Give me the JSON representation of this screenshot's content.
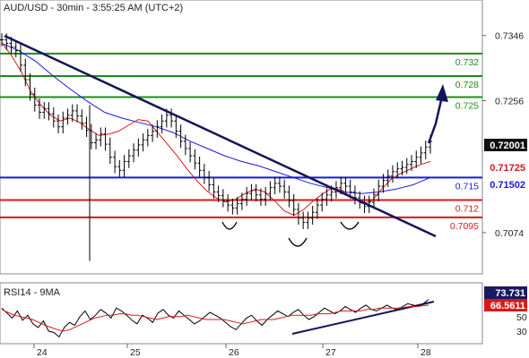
{
  "chart_data": {
    "type": "candlestick",
    "title": "AUD/USD - 30min - 3:55:25 AM (UTC+2)",
    "x_ticks": [
      "24",
      "25",
      "26",
      "27",
      "28"
    ],
    "y_ticks": [
      "0.7346",
      "0.7256",
      "0.7074"
    ],
    "ylim": [
      0.7022,
      0.739
    ],
    "current_price": "0.72001",
    "moving_average_labels": [
      "0.71725",
      "0.71502"
    ],
    "levels": [
      {
        "label": "0.732",
        "value": 0.7321,
        "color": "#1a8c1a"
      },
      {
        "label": "0.728",
        "value": 0.729,
        "color": "#1a8c1a"
      },
      {
        "label": "0.725",
        "value": 0.7261,
        "color": "#1a8c1a"
      },
      {
        "label": "0.715",
        "value": 0.715,
        "color": "#1919d9"
      },
      {
        "label": "0.712",
        "value": 0.7119,
        "color": "#d91919"
      },
      {
        "label": "0.7095",
        "value": 0.7095,
        "color": "#d91919"
      }
    ],
    "series": [
      {
        "name": "price",
        "color": "#000000",
        "values": [
          0.734,
          0.7335,
          0.733,
          0.7325,
          0.7305,
          0.7285,
          0.7265,
          0.725,
          0.724,
          0.7245,
          0.7238,
          0.7228,
          0.722,
          0.7232,
          0.7236,
          0.7242,
          0.7235,
          0.7225,
          0.7215,
          0.7198,
          0.7202,
          0.721,
          0.7196,
          0.7178,
          0.7165,
          0.716,
          0.7172,
          0.718,
          0.7188,
          0.7195,
          0.7202,
          0.7208,
          0.7214,
          0.722,
          0.7228,
          0.7236,
          0.7228,
          0.7214,
          0.72,
          0.719,
          0.718,
          0.717,
          0.716,
          0.715,
          0.714,
          0.713,
          0.7125,
          0.7118,
          0.7112,
          0.7108,
          0.7114,
          0.712,
          0.7128,
          0.7132,
          0.7126,
          0.712,
          0.7128,
          0.7136,
          0.7142,
          0.7138,
          0.713,
          0.7118,
          0.7106,
          0.7094,
          0.7088,
          0.7094,
          0.7102,
          0.7112,
          0.712,
          0.7126,
          0.713,
          0.7136,
          0.7142,
          0.7138,
          0.713,
          0.7122,
          0.7116,
          0.711,
          0.7116,
          0.7126,
          0.7138,
          0.7146,
          0.7152,
          0.7158,
          0.7162,
          0.7164,
          0.7168,
          0.7172,
          0.7178,
          0.7184,
          0.7192,
          0.72
        ]
      },
      {
        "name": "ma_slow",
        "color": "#1919d9",
        "values": [
          0.7335,
          0.7325,
          0.731,
          0.729,
          0.7272,
          0.7255,
          0.724,
          0.7232,
          0.7226,
          0.722,
          0.7212,
          0.72,
          0.719,
          0.718,
          0.7172,
          0.7166,
          0.7158,
          0.715,
          0.7142,
          0.7136,
          0.713,
          0.7128,
          0.713,
          0.7134,
          0.714,
          0.715
        ]
      },
      {
        "name": "ma_fast",
        "color": "#d91919",
        "values": [
          0.7336,
          0.7318,
          0.7296,
          0.7268,
          0.725,
          0.7236,
          0.7228,
          0.7232,
          0.7226,
          0.7216,
          0.7208,
          0.721,
          0.7214,
          0.7222,
          0.723,
          0.7228,
          0.7212,
          0.7196,
          0.718,
          0.7162,
          0.7146,
          0.7132,
          0.7122,
          0.7116,
          0.712,
          0.7128,
          0.7134,
          0.713,
          0.7118,
          0.7104,
          0.7098,
          0.7106,
          0.7118,
          0.7128,
          0.7136,
          0.7132,
          0.7122,
          0.7114,
          0.7118,
          0.7134,
          0.7148,
          0.7156,
          0.7162,
          0.7168,
          0.7172
        ]
      }
    ],
    "rsi": {
      "label": "RSI14 - 9MA",
      "y_ticks": [
        "70",
        "50",
        "30"
      ],
      "ylim": [
        15,
        92
      ],
      "value_label": "73.731",
      "ma_label": "66.5611",
      "series": [
        {
          "name": "rsi",
          "color": "#000000",
          "values": [
            62,
            55,
            48,
            58,
            45,
            52,
            40,
            35,
            44,
            30,
            28,
            22,
            35,
            42,
            38,
            50,
            58,
            46,
            52,
            60,
            55,
            48,
            62,
            58,
            52,
            45,
            40,
            52,
            48,
            42,
            55,
            60,
            52,
            48,
            58,
            52,
            46,
            40,
            44,
            50,
            56,
            52,
            48,
            42,
            36,
            32,
            40,
            48,
            52,
            44,
            38,
            46,
            52,
            58,
            54,
            50,
            56,
            60,
            52,
            46,
            50,
            56,
            62,
            58,
            54,
            58,
            64,
            60,
            56,
            62,
            66,
            60,
            58,
            62,
            66,
            62,
            60,
            64,
            68,
            66,
            64,
            68,
            74
          ]
        },
        {
          "name": "rsi_ma",
          "color": "#d91919",
          "values": [
            60,
            56,
            52,
            50,
            48,
            46,
            42,
            38,
            35,
            32,
            30,
            32,
            36,
            40,
            44,
            48,
            50,
            52,
            52,
            54,
            54,
            52,
            52,
            50,
            48,
            46,
            48,
            50,
            50,
            50,
            52,
            50,
            48,
            46,
            46,
            46,
            46,
            44,
            42,
            40,
            42,
            44,
            46,
            46,
            46,
            48,
            50,
            52,
            52,
            52,
            52,
            54,
            54,
            54,
            56,
            58,
            58,
            58,
            58,
            60,
            60,
            62,
            62,
            62,
            62,
            63,
            64,
            64,
            65,
            66
          ]
        }
      ]
    }
  }
}
